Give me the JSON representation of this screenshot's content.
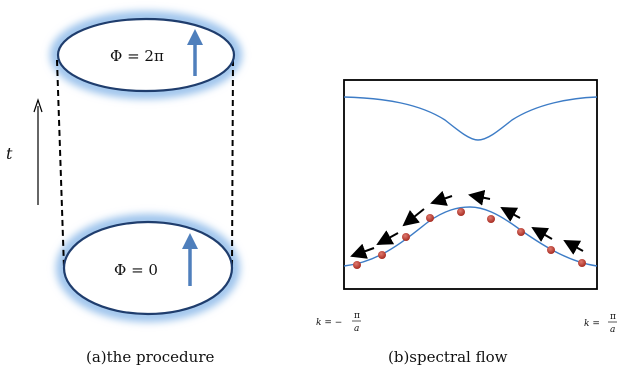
{
  "left_panel": {
    "top_ring_label": "Φ = 2π",
    "bottom_ring_label": "Φ = 0",
    "time_label": "t",
    "caption": "(a)the procedure"
  },
  "right_panel": {
    "caption": "(b)spectral flow",
    "k_left_prefix": "k = −",
    "k_right_prefix": "k =",
    "k_num": "π",
    "k_den": "a"
  },
  "colors": {
    "ring": "#1f3d6d",
    "glow": "#9cc3ec",
    "arrow_up": "#4f7fbc",
    "band": "#3d7cc6",
    "dot": "#c0392b",
    "flow_arrow": "#000000"
  }
}
